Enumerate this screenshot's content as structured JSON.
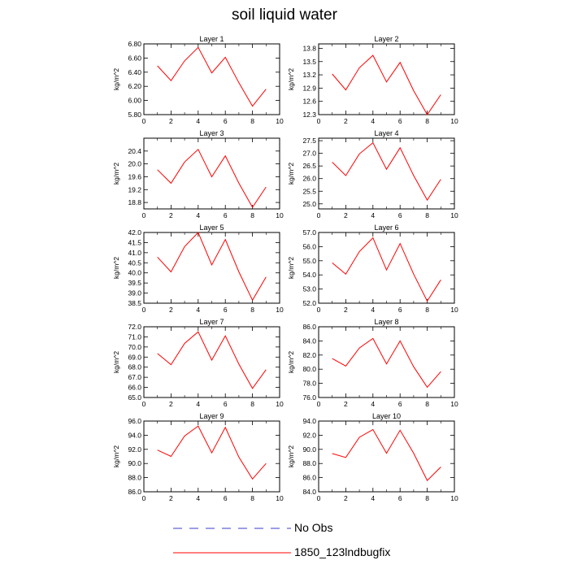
{
  "title": "soil liquid water",
  "legend": [
    {
      "label": "No Obs",
      "color": "#3b3bd1",
      "style": "dashed"
    },
    {
      "label": "1850_123lndbugfix",
      "color": "#ff0000",
      "style": "solid"
    }
  ],
  "chart_data": [
    {
      "type": "line",
      "title": "Layer 1",
      "ylabel": "kg/m^2",
      "xlim": [
        0,
        10
      ],
      "ylim": [
        5.8,
        6.8
      ],
      "x_ticks": [
        0,
        2,
        4,
        6,
        8,
        10
      ],
      "y_ticks": [
        "5.80",
        "6.00",
        "6.20",
        "6.40",
        "6.60",
        "6.80"
      ],
      "series": [
        {
          "name": "1850_123lndbugfix",
          "x": [
            1,
            2,
            3,
            4,
            5,
            6,
            7,
            8,
            9
          ],
          "values": [
            6.49,
            6.28,
            6.56,
            6.75,
            6.39,
            6.61,
            6.25,
            5.92,
            6.16
          ]
        }
      ]
    },
    {
      "type": "line",
      "title": "Layer 2",
      "ylabel": "kg/m^2",
      "xlim": [
        0,
        10
      ],
      "ylim": [
        12.3,
        13.9
      ],
      "x_ticks": [
        0,
        2,
        4,
        6,
        8,
        10
      ],
      "y_ticks": [
        "12.3",
        "12.6",
        "12.9",
        "13.2",
        "13.5",
        "13.8"
      ],
      "series": [
        {
          "name": "1850_123lndbugfix",
          "x": [
            1,
            2,
            3,
            4,
            5,
            6,
            7,
            8,
            9
          ],
          "values": [
            13.22,
            12.86,
            13.36,
            13.64,
            13.04,
            13.48,
            12.84,
            12.3,
            12.75
          ]
        }
      ]
    },
    {
      "type": "line",
      "title": "Layer 3",
      "ylabel": "kg/m^2",
      "xlim": [
        0,
        10
      ],
      "ylim": [
        18.6,
        20.8
      ],
      "x_ticks": [
        0,
        2,
        4,
        6,
        8,
        10
      ],
      "y_ticks": [
        "18.8",
        "19.2",
        "19.6",
        "20.0",
        "20.4"
      ],
      "series": [
        {
          "name": "1850_123lndbugfix",
          "x": [
            1,
            2,
            3,
            4,
            5,
            6,
            7,
            8,
            9
          ],
          "values": [
            19.82,
            19.4,
            20.06,
            20.45,
            19.6,
            20.25,
            19.4,
            18.65,
            19.28
          ]
        }
      ]
    },
    {
      "type": "line",
      "title": "Layer 4",
      "ylabel": "kg/m^2",
      "xlim": [
        0,
        10
      ],
      "ylim": [
        24.8,
        27.6
      ],
      "x_ticks": [
        0,
        2,
        4,
        6,
        8,
        10
      ],
      "y_ticks": [
        "25.0",
        "25.5",
        "26.0",
        "26.5",
        "27.0",
        "27.5"
      ],
      "series": [
        {
          "name": "1850_123lndbugfix",
          "x": [
            1,
            2,
            3,
            4,
            5,
            6,
            7,
            8,
            9
          ],
          "values": [
            26.65,
            26.12,
            26.98,
            27.42,
            26.37,
            27.22,
            26.12,
            25.15,
            25.97
          ]
        }
      ]
    },
    {
      "type": "line",
      "title": "Layer 5",
      "ylabel": "kg/m^2",
      "xlim": [
        0,
        10
      ],
      "ylim": [
        38.5,
        42.0
      ],
      "x_ticks": [
        0,
        2,
        4,
        6,
        8,
        10
      ],
      "y_ticks": [
        "38.5",
        "39.0",
        "39.5",
        "40.0",
        "40.5",
        "41.0",
        "41.5",
        "42.0"
      ],
      "series": [
        {
          "name": "1850_123lndbugfix",
          "x": [
            1,
            2,
            3,
            4,
            5,
            6,
            7,
            8,
            9
          ],
          "values": [
            40.78,
            40.05,
            41.3,
            42.0,
            40.4,
            41.65,
            40.05,
            38.65,
            39.8
          ]
        }
      ]
    },
    {
      "type": "line",
      "title": "Layer 6",
      "ylabel": "kg/m^2",
      "xlim": [
        0,
        10
      ],
      "ylim": [
        52.0,
        57.0
      ],
      "x_ticks": [
        0,
        2,
        4,
        6,
        8,
        10
      ],
      "y_ticks": [
        "52.0",
        "53.0",
        "54.0",
        "55.0",
        "56.0",
        "57.0"
      ],
      "series": [
        {
          "name": "1850_123lndbugfix",
          "x": [
            1,
            2,
            3,
            4,
            5,
            6,
            7,
            8,
            9
          ],
          "values": [
            54.85,
            54.05,
            55.65,
            56.62,
            54.35,
            56.22,
            54.05,
            52.15,
            53.65
          ]
        }
      ]
    },
    {
      "type": "line",
      "title": "Layer 7",
      "ylabel": "kg/m^2",
      "xlim": [
        0,
        10
      ],
      "ylim": [
        65.0,
        72.0
      ],
      "x_ticks": [
        0,
        2,
        4,
        6,
        8,
        10
      ],
      "y_ticks": [
        "65.0",
        "66.0",
        "67.0",
        "68.0",
        "69.0",
        "70.0",
        "71.0",
        "72.0"
      ],
      "series": [
        {
          "name": "1850_123lndbugfix",
          "x": [
            1,
            2,
            3,
            4,
            5,
            6,
            7,
            8,
            9
          ],
          "values": [
            69.35,
            68.25,
            70.35,
            71.5,
            68.7,
            71.1,
            68.3,
            65.9,
            67.75
          ]
        }
      ]
    },
    {
      "type": "line",
      "title": "Layer 8",
      "ylabel": "kg/m^2",
      "xlim": [
        0,
        10
      ],
      "ylim": [
        76.0,
        86.0
      ],
      "x_ticks": [
        0,
        2,
        4,
        6,
        8,
        10
      ],
      "y_ticks": [
        "76.0",
        "78.0",
        "80.0",
        "82.0",
        "84.0",
        "86.0"
      ],
      "series": [
        {
          "name": "1850_123lndbugfix",
          "x": [
            1,
            2,
            3,
            4,
            5,
            6,
            7,
            8,
            9
          ],
          "values": [
            81.5,
            80.45,
            83.0,
            84.35,
            80.75,
            84.0,
            80.35,
            77.45,
            79.65
          ]
        }
      ]
    },
    {
      "type": "line",
      "title": "Layer 9",
      "ylabel": "kg/m^2",
      "xlim": [
        0,
        10
      ],
      "ylim": [
        86.0,
        96.0
      ],
      "x_ticks": [
        0,
        2,
        4,
        6,
        8,
        10
      ],
      "y_ticks": [
        "86.0",
        "88.0",
        "90.0",
        "92.0",
        "94.0",
        "96.0"
      ],
      "series": [
        {
          "name": "1850_123lndbugfix",
          "x": [
            1,
            2,
            3,
            4,
            5,
            6,
            7,
            8,
            9
          ],
          "values": [
            91.9,
            91.0,
            93.9,
            95.3,
            91.5,
            95.1,
            90.9,
            87.8,
            90.0
          ]
        }
      ]
    },
    {
      "type": "line",
      "title": "Layer 10",
      "ylabel": "kg/m^2",
      "xlim": [
        0,
        10
      ],
      "ylim": [
        84.0,
        94.0
      ],
      "x_ticks": [
        0,
        2,
        4,
        6,
        8,
        10
      ],
      "y_ticks": [
        "84.0",
        "86.0",
        "88.0",
        "90.0",
        "92.0",
        "94.0"
      ],
      "series": [
        {
          "name": "1850_123lndbugfix",
          "x": [
            1,
            2,
            3,
            4,
            5,
            6,
            7,
            8,
            9
          ],
          "values": [
            89.4,
            88.85,
            91.7,
            92.8,
            89.45,
            92.7,
            89.45,
            85.6,
            87.5
          ]
        }
      ]
    }
  ]
}
